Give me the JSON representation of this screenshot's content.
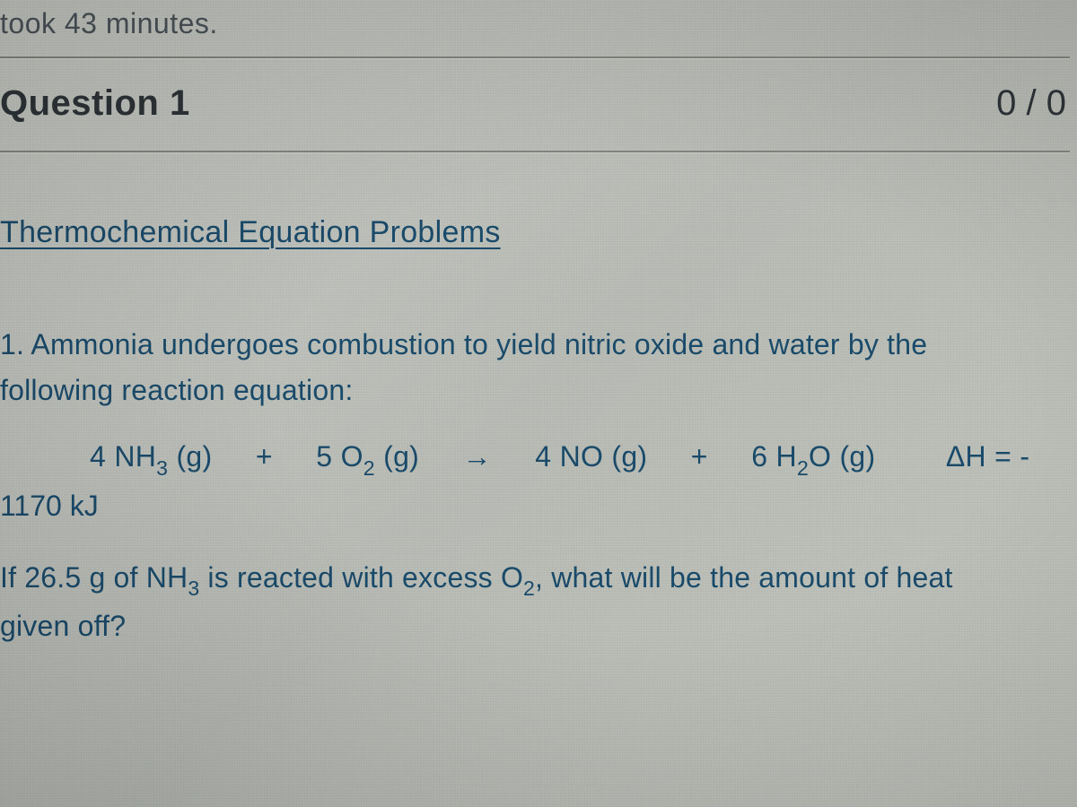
{
  "colors": {
    "background_gradient": [
      "#c8cac4",
      "#b8bcb5",
      "#c0c4bc"
    ],
    "top_text": "#4a5258",
    "heading": "#2d3338",
    "link_blue": "#1a4a6a",
    "hr": "#808580"
  },
  "typography": {
    "top_fontsize": 32,
    "heading_fontsize": 40,
    "section_fontsize": 34,
    "body_fontsize": 32,
    "line_height": 1.6
  },
  "top_line": "took 43 minutes.",
  "question_header": {
    "title": "Question 1",
    "score": "0 / 0"
  },
  "section_title": "Thermochemical Equation Problems",
  "problem": {
    "intro_line1": "1.  Ammonia undergoes combustion to yield nitric oxide and water by the",
    "intro_line2": "following reaction equation:",
    "equation": {
      "reactant1_coef": "4",
      "reactant1": "NH",
      "reactant1_sub": "3",
      "reactant1_state": "(g)",
      "plus1": "+",
      "reactant2_coef": "5",
      "reactant2": "O",
      "reactant2_sub": "2",
      "reactant2_state": "(g)",
      "arrow": "→",
      "product1_coef": "4",
      "product1": "NO",
      "product1_state": "(g)",
      "plus2": "+",
      "product2_coef": "6",
      "product2": "H",
      "product2_sub": "2",
      "product2_tail": "O",
      "product2_state": "(g)",
      "delta_h_label": "ΔH = -"
    },
    "delta_h_value": "1170 kJ",
    "question_line1_prefix": "If 26.5 g of NH",
    "question_line1_sub": "3",
    "question_line1_mid": " is reacted with excess O",
    "question_line1_sub2": "2",
    "question_line1_suffix": ", what will be the amount of heat",
    "question_line2": "given off?"
  }
}
